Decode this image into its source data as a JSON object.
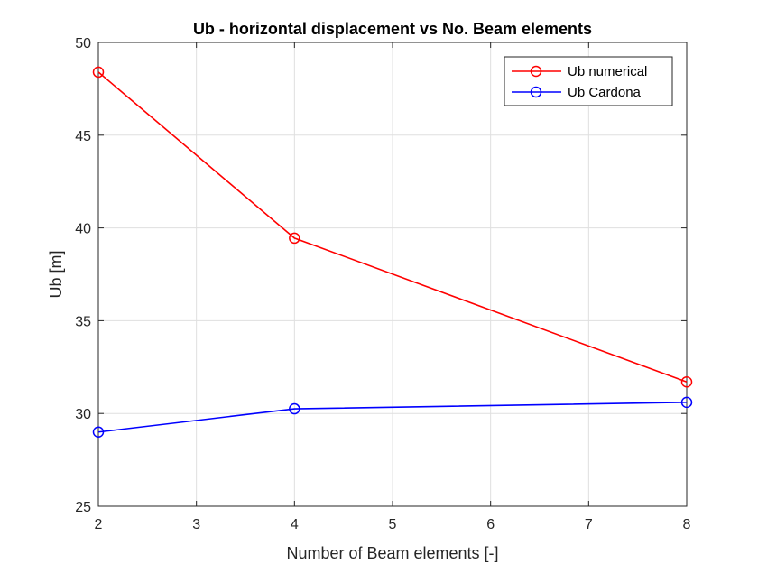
{
  "chart_data": {
    "type": "line",
    "title": "Ub - horizontal displacement vs No. Beam elements",
    "xlabel": "Number of Beam elements [-]",
    "ylabel": "Ub [m]",
    "xlim": [
      2,
      8
    ],
    "ylim": [
      25,
      50
    ],
    "xticks": [
      2,
      3,
      4,
      5,
      6,
      7,
      8
    ],
    "yticks": [
      25,
      30,
      35,
      40,
      45,
      50
    ],
    "grid": true,
    "legend_position": "top-right",
    "x": [
      2,
      4,
      8
    ],
    "series": [
      {
        "name": "Ub numerical",
        "color": "#ff0000",
        "marker": "circle",
        "values": [
          48.4,
          39.45,
          31.7
        ]
      },
      {
        "name": "Ub Cardona",
        "color": "#0000ff",
        "marker": "circle",
        "values": [
          29.0,
          30.25,
          30.6
        ]
      }
    ]
  }
}
